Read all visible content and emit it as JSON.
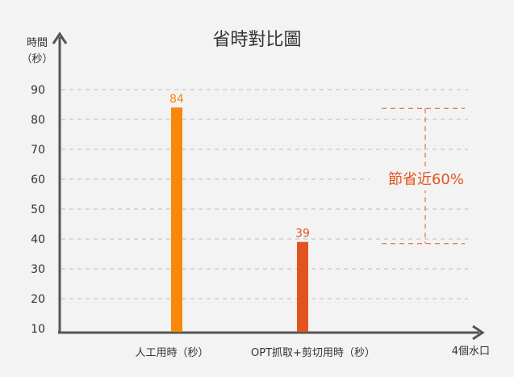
{
  "chart_data": {
    "type": "bar",
    "title": "省時對比圖",
    "ylabel_line1": "時間",
    "ylabel_line2": "（秒）",
    "xlabel": "4個水口",
    "categories": [
      "人工用時（秒）",
      "OPT抓取+剪切用時（秒）"
    ],
    "values": [
      84,
      39
    ],
    "bar_colors": [
      "#f8870a",
      "#e2541f"
    ],
    "ylim": [
      10,
      90
    ],
    "yticks": [
      10,
      20,
      30,
      40,
      50,
      60,
      70,
      80,
      90
    ],
    "grid": true,
    "annotation": {
      "text": "節省近60%",
      "from_value": 84,
      "to_value": 39,
      "color": "#e2541f"
    },
    "axis_color": "#555555",
    "grid_color": "#bbbbbb"
  }
}
